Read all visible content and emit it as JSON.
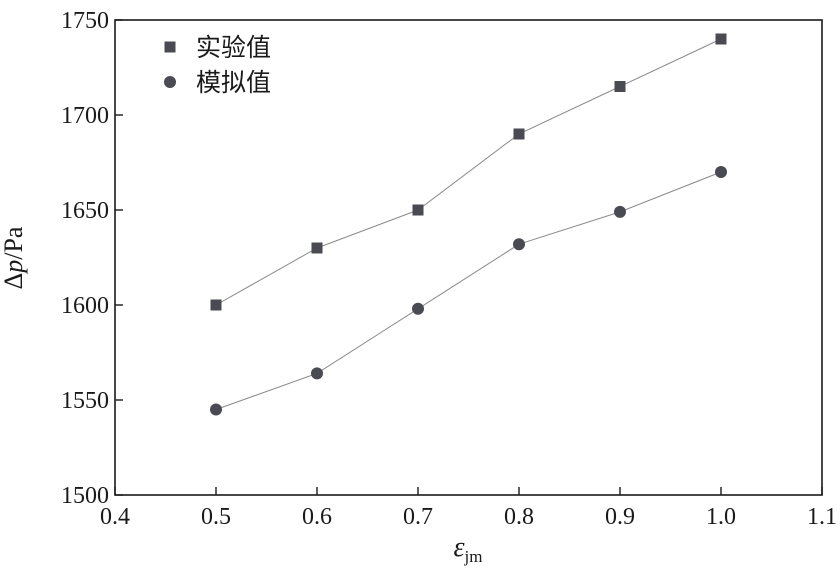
{
  "chart_data": {
    "type": "line",
    "xlabel": "ε",
    "xlabel_subscript": "jm",
    "ylabel_prefix": "Δ",
    "ylabel_var": "p",
    "ylabel_unit": "/Pa",
    "xlim": [
      0.4,
      1.1
    ],
    "ylim": [
      1500,
      1750
    ],
    "x_ticks": [
      "0.4",
      "0.5",
      "0.6",
      "0.7",
      "0.8",
      "0.9",
      "1.0",
      "1.1"
    ],
    "y_ticks": [
      "1500",
      "1550",
      "1600",
      "1650",
      "1700",
      "1750"
    ],
    "grid": false,
    "legend_position": "top-left",
    "marker_color": "#4a4a52",
    "line_color": "#8a8a8a",
    "series": [
      {
        "name": "实验值",
        "marker": "square",
        "x": [
          0.5,
          0.6,
          0.7,
          0.8,
          0.9,
          1.0
        ],
        "y": [
          1600,
          1630,
          1650,
          1690,
          1715,
          1740
        ]
      },
      {
        "name": "模拟值",
        "marker": "circle",
        "x": [
          0.5,
          0.6,
          0.7,
          0.8,
          0.9,
          1.0
        ],
        "y": [
          1545,
          1564,
          1598,
          1632,
          1649,
          1670
        ]
      }
    ]
  }
}
